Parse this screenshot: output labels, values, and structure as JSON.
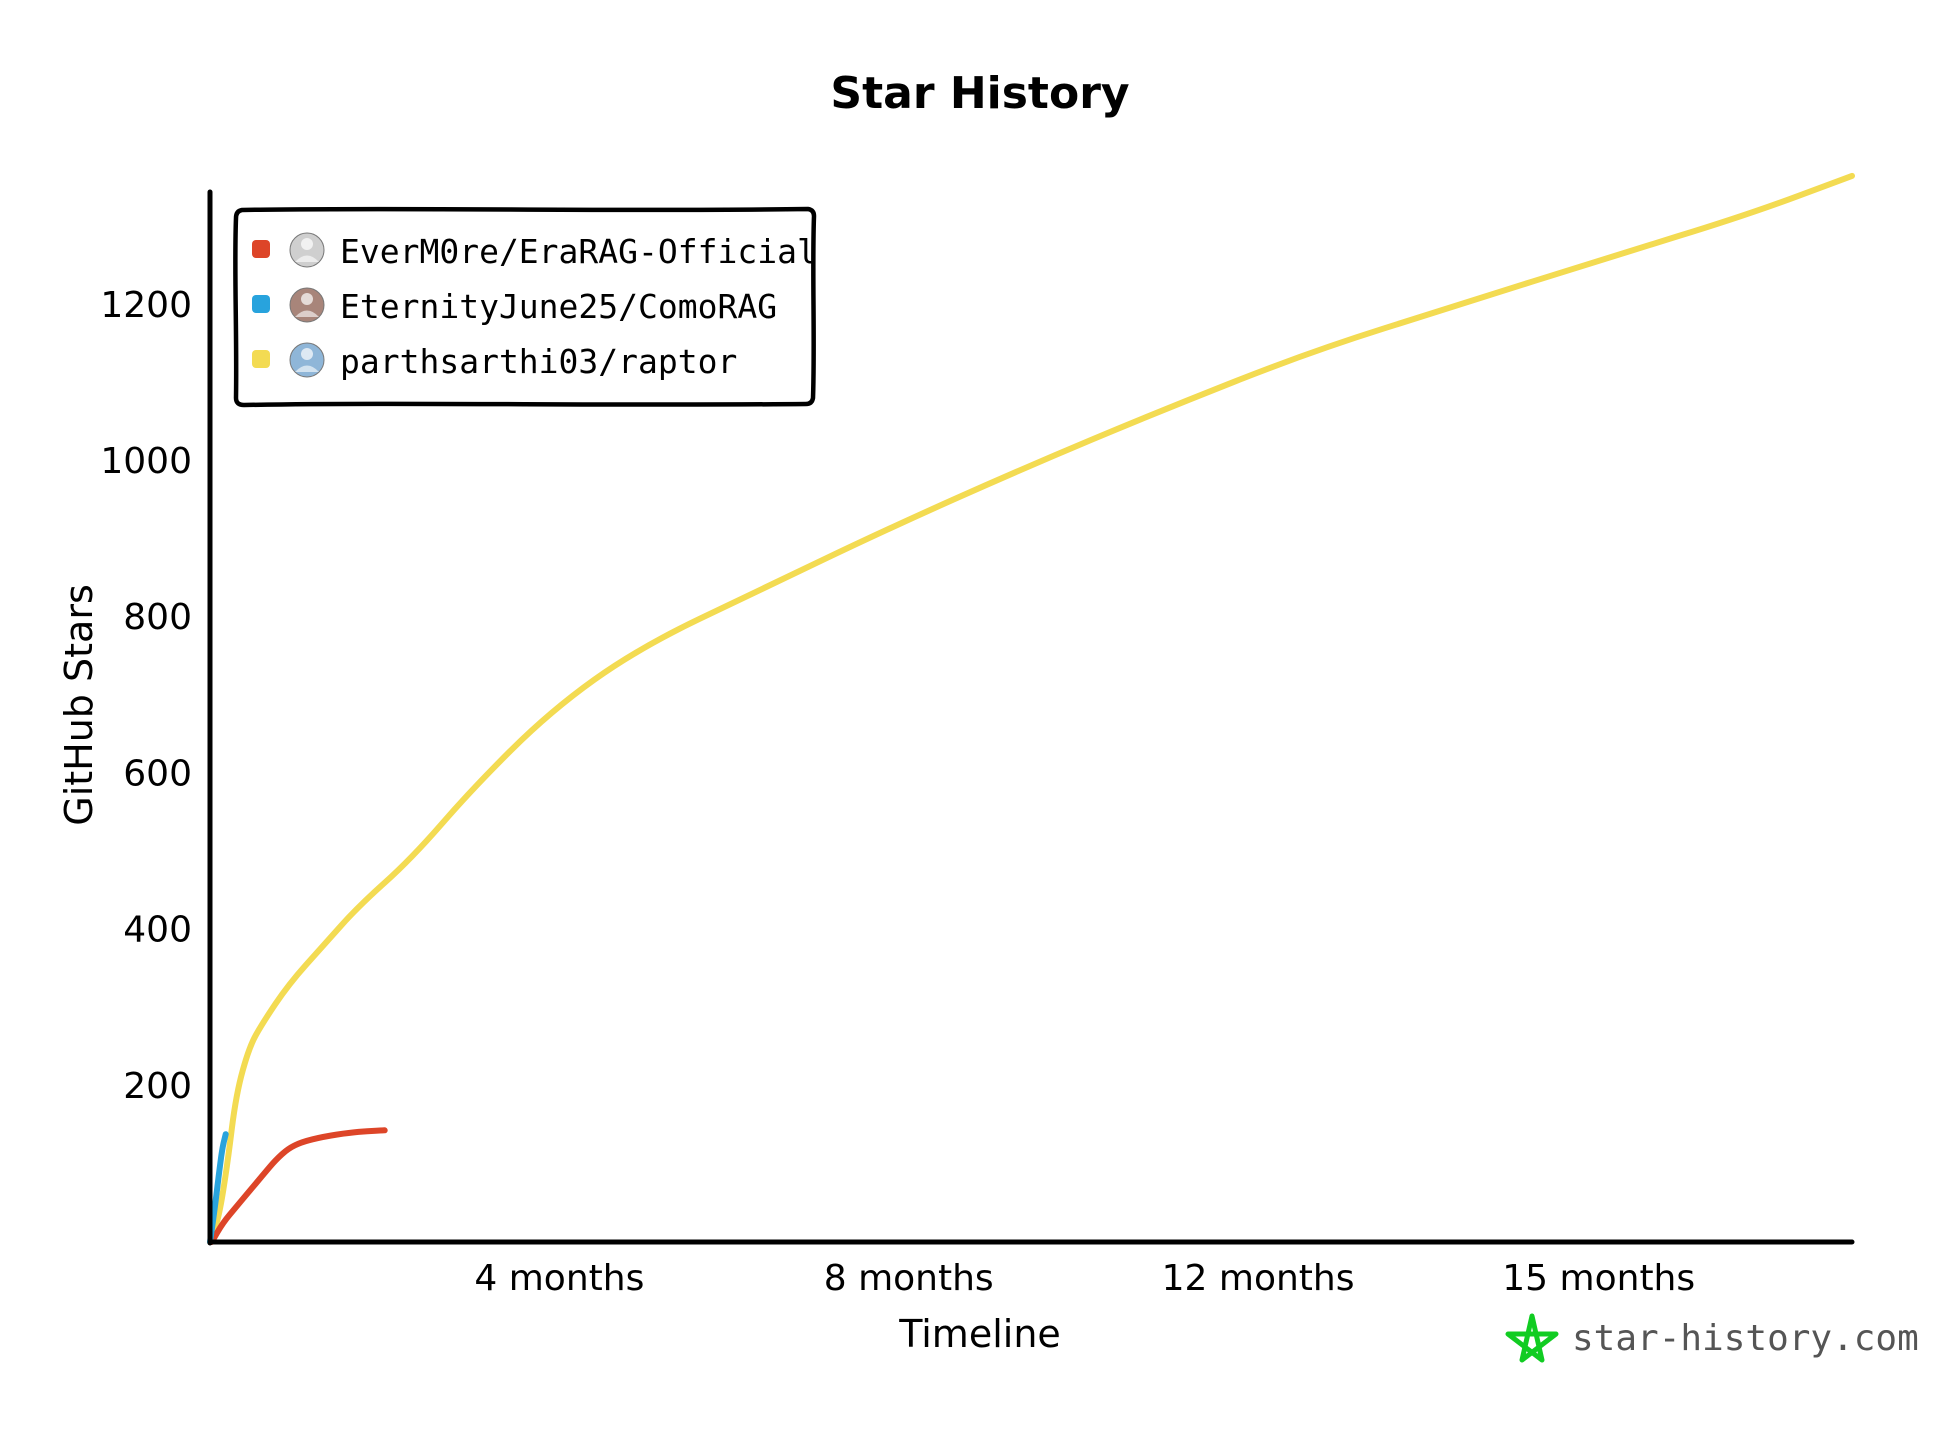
{
  "chart_data": {
    "type": "line",
    "title": "Star History",
    "xlabel": "Timeline",
    "ylabel": "GitHub Stars",
    "x_unit": "months",
    "xlim": [
      0,
      18.8
    ],
    "ylim": [
      0,
      1370
    ],
    "x_ticks": [
      {
        "value": 4,
        "label": "4 months"
      },
      {
        "value": 8,
        "label": "8 months"
      },
      {
        "value": 12,
        "label": "12 months"
      },
      {
        "value": 15.9,
        "label": "15 months"
      }
    ],
    "y_ticks": [
      200,
      400,
      600,
      800,
      1000,
      1200
    ],
    "legend_position": "top-left",
    "series": [
      {
        "name": "EverM0re/EraRAG-Official",
        "color": "#dd4528",
        "avatar_icon": "wolf-avatar-icon",
        "points": [
          [
            0.02,
            0
          ],
          [
            0.15,
            25
          ],
          [
            0.3,
            45
          ],
          [
            0.45,
            65
          ],
          [
            0.6,
            85
          ],
          [
            0.75,
            105
          ],
          [
            0.9,
            120
          ],
          [
            1.05,
            128
          ],
          [
            1.3,
            135
          ],
          [
            1.6,
            140
          ],
          [
            1.8,
            142
          ],
          [
            2.0,
            143
          ]
        ]
      },
      {
        "name": "EternityJune25/ComoRAG",
        "color": "#28a3dd",
        "avatar_icon": "person-avatar-icon",
        "points": [
          [
            0.0,
            0
          ],
          [
            0.05,
            40
          ],
          [
            0.1,
            85
          ],
          [
            0.14,
            120
          ],
          [
            0.18,
            138
          ]
        ]
      },
      {
        "name": "parthsarthi03/raptor",
        "color": "#f3db52",
        "avatar_icon": "landscape-avatar-icon",
        "points": [
          [
            0.0,
            0
          ],
          [
            0.1,
            30
          ],
          [
            0.2,
            100
          ],
          [
            0.3,
            190
          ],
          [
            0.45,
            250
          ],
          [
            0.6,
            280
          ],
          [
            0.9,
            330
          ],
          [
            1.3,
            380
          ],
          [
            1.7,
            430
          ],
          [
            2.3,
            490
          ],
          [
            3.0,
            580
          ],
          [
            3.9,
            680
          ],
          [
            4.9,
            760
          ],
          [
            6.3,
            835
          ],
          [
            7.7,
            910
          ],
          [
            9.3,
            990
          ],
          [
            10.9,
            1065
          ],
          [
            12.6,
            1140
          ],
          [
            14.3,
            1200
          ],
          [
            16.0,
            1260
          ],
          [
            17.6,
            1315
          ],
          [
            18.8,
            1365
          ]
        ]
      }
    ]
  },
  "watermark": {
    "text": "star-history.com",
    "icon": "star-history-logo-icon",
    "icon_color": "#11cc22"
  }
}
